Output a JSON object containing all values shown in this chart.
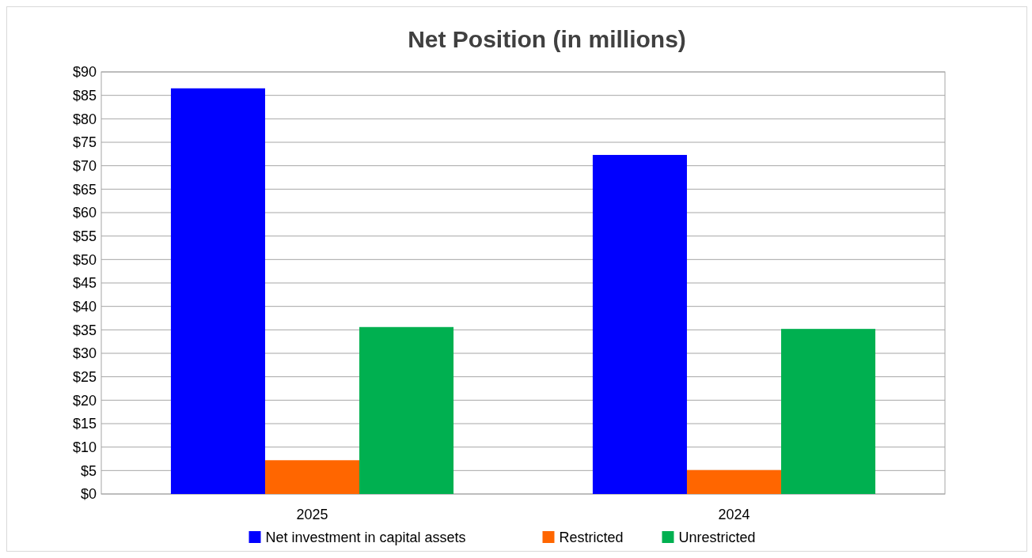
{
  "chart_data": {
    "type": "bar",
    "title": "Net Position (in millions)",
    "categories": [
      "2025",
      "2024"
    ],
    "series": [
      {
        "name": "Net investment in capital assets",
        "color": "#0000ff",
        "values": [
          86.5,
          72.3
        ]
      },
      {
        "name": "Restricted",
        "color": "#ff6600",
        "values": [
          7.2,
          5.1
        ]
      },
      {
        "name": "Unrestricted",
        "color": "#00b050",
        "values": [
          35.6,
          35.2
        ]
      }
    ],
    "ylim": [
      0,
      90
    ],
    "yticks": [
      {
        "value": 0,
        "label": "$0"
      },
      {
        "value": 5,
        "label": "$5"
      },
      {
        "value": 10,
        "label": "$10"
      },
      {
        "value": 15,
        "label": "$15"
      },
      {
        "value": 20,
        "label": "$20"
      },
      {
        "value": 25,
        "label": "$25"
      },
      {
        "value": 30,
        "label": "$30"
      },
      {
        "value": 35,
        "label": "$35"
      },
      {
        "value": 40,
        "label": "$40"
      },
      {
        "value": 45,
        "label": "$45"
      },
      {
        "value": 50,
        "label": "$50"
      },
      {
        "value": 55,
        "label": "$55"
      },
      {
        "value": 60,
        "label": "$60"
      },
      {
        "value": 65,
        "label": "$65"
      },
      {
        "value": 70,
        "label": "$70"
      },
      {
        "value": 75,
        "label": "$75"
      },
      {
        "value": 80,
        "label": "$80"
      },
      {
        "value": 85,
        "label": "$85"
      },
      {
        "value": 90,
        "label": "$90"
      }
    ],
    "grid": "y",
    "legend": "bottom"
  }
}
